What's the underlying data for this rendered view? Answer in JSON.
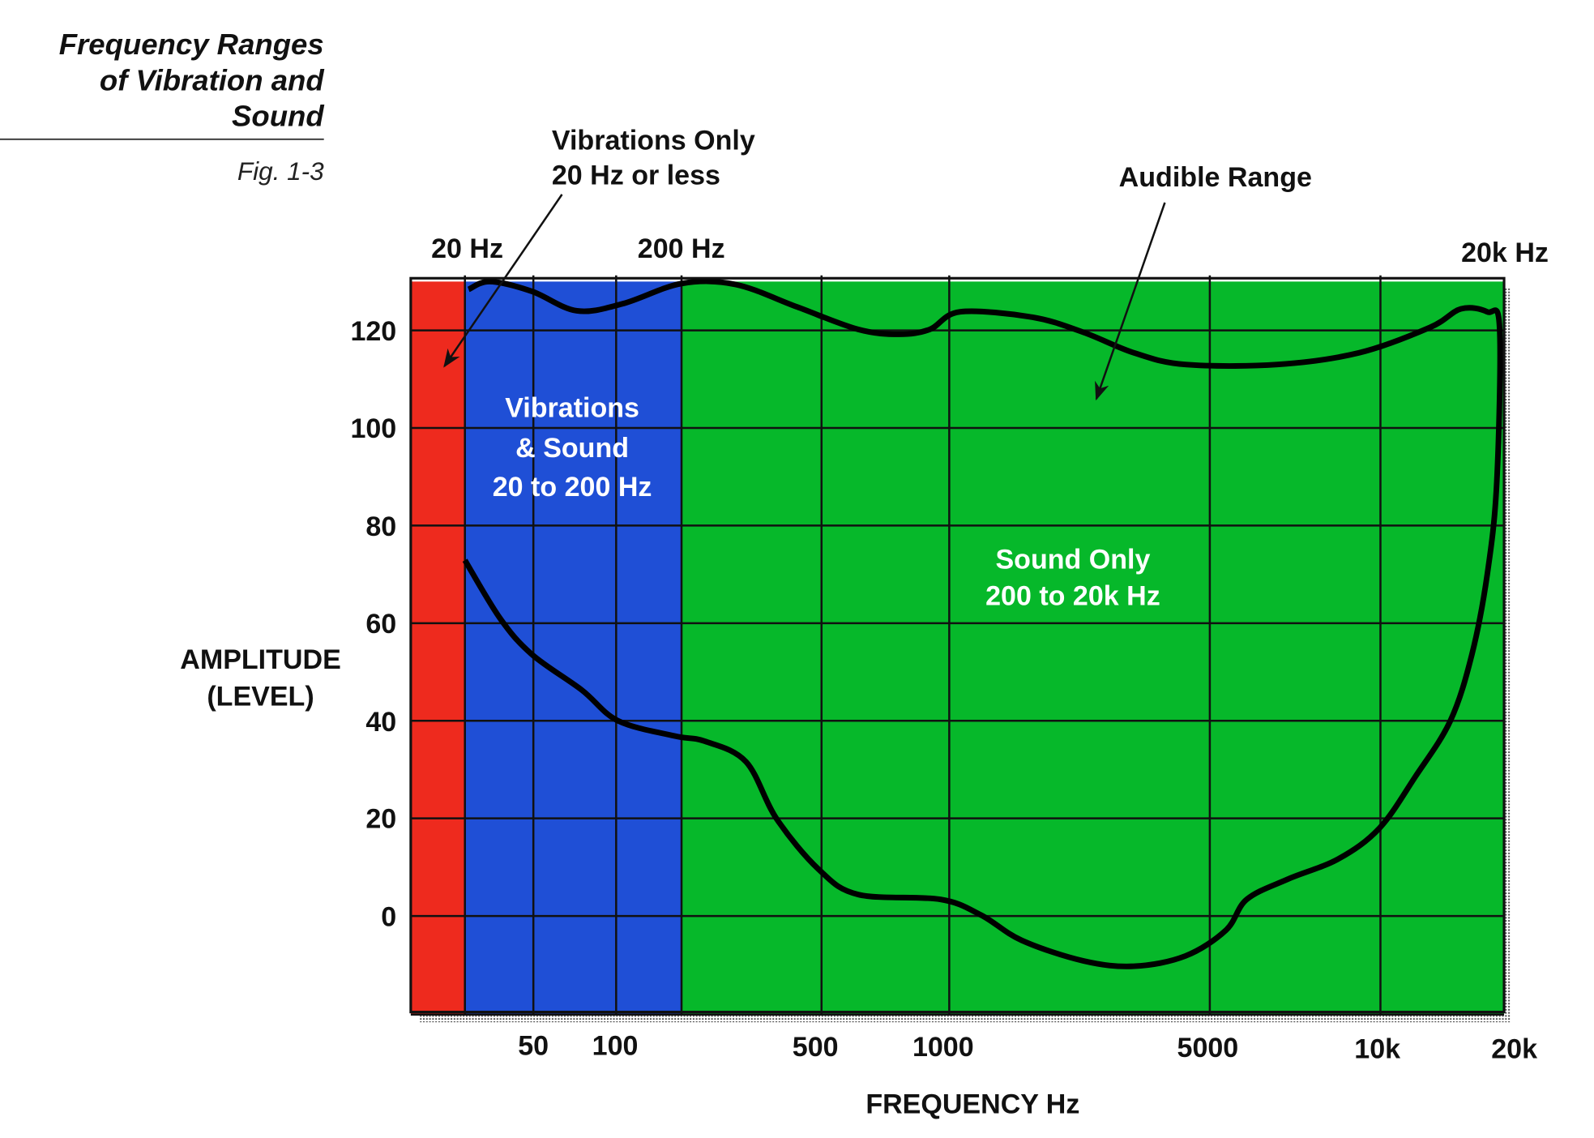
{
  "header": {
    "title_lines": [
      "Frequency Ranges",
      "of Vibration and",
      "Sound"
    ],
    "figure_label": "Fig. 1-3"
  },
  "colors": {
    "vibrations_only": "#ee2a1e",
    "vibrations_and_sound": "#1f4fd6",
    "sound_only": "#06b82a",
    "curve": "#000000"
  },
  "chart_data": {
    "type": "line",
    "title": "",
    "xlabel": "FREQUENCY Hz",
    "ylabel_lines": [
      "AMPLITUDE",
      "(LEVEL)"
    ],
    "x_scale": "log",
    "x_ticks": [
      "50",
      "100",
      "500",
      "1000",
      "5000",
      "10k",
      "20k"
    ],
    "x_tick_values": [
      50,
      100,
      500,
      1000,
      5000,
      10000,
      20000
    ],
    "top_markers": [
      "20 Hz",
      "200 Hz",
      "20k Hz"
    ],
    "y_ticks": [
      "120",
      "100",
      "80",
      "60",
      "40",
      "20",
      "0"
    ],
    "ylim": [
      -20,
      130
    ],
    "grid": true,
    "regions": [
      {
        "label_lines": [],
        "from_hz": 10,
        "to_hz": 20,
        "color": "#ee2a1e"
      },
      {
        "label_lines": [
          "Vibrations",
          "& Sound",
          "20 to 200 Hz"
        ],
        "from_hz": 20,
        "to_hz": 200,
        "color": "#1f4fd6"
      },
      {
        "label_lines": [
          "Sound Only",
          "200 to 20k Hz"
        ],
        "from_hz": 200,
        "to_hz": 20000,
        "color": "#06b82a"
      }
    ],
    "annotations": [
      {
        "label_lines": [
          "Vibrations Only",
          "20 Hz or less"
        ]
      },
      {
        "label_lines": [
          "Audible Range"
        ]
      }
    ],
    "series": [
      {
        "upper_boundary": [
          [
            21,
            128.4
          ],
          [
            28,
            130
          ],
          [
            49,
            128
          ],
          [
            72,
            124
          ],
          [
            108,
            125.5
          ],
          [
            200,
            129.6
          ],
          [
            285,
            129.4
          ],
          [
            426,
            124.8
          ],
          [
            610,
            120.2
          ],
          [
            762,
            119.2
          ],
          [
            900,
            120.2
          ],
          [
            1070,
            123.8
          ],
          [
            1670,
            122.7
          ],
          [
            2290,
            119.6
          ],
          [
            3130,
            115.4
          ],
          [
            4300,
            113
          ],
          [
            6580,
            113
          ],
          [
            9170,
            115.4
          ],
          [
            13200,
            120.6
          ],
          [
            15700,
            124.4
          ],
          [
            18200,
            123.8
          ],
          [
            19500,
            120.6
          ]
        ],
        "lower_boundary": [
          [
            19500,
            120.6
          ],
          [
            19200,
            89
          ],
          [
            18200,
            70
          ],
          [
            16700,
            53.6
          ],
          [
            14800,
            40
          ],
          [
            12150,
            28.5
          ],
          [
            9960,
            18
          ],
          [
            8430,
            11.7
          ],
          [
            6850,
            7.5
          ],
          [
            5810,
            3.4
          ],
          [
            5340,
            -2.9
          ],
          [
            4300,
            -8.2
          ],
          [
            3130,
            -10.3
          ],
          [
            2290,
            -9.2
          ],
          [
            1565,
            -5
          ],
          [
            1216,
            0.2
          ],
          [
            952,
            3.4
          ],
          [
            610,
            4.4
          ],
          [
            490,
            9.6
          ],
          [
            372,
            20
          ],
          [
            305,
            31.6
          ],
          [
            233,
            35.8
          ],
          [
            185,
            36.9
          ],
          [
            102,
            40
          ],
          [
            75,
            46.3
          ],
          [
            49,
            53.6
          ],
          [
            32,
            61
          ],
          [
            20,
            72.9
          ]
        ]
      }
    ]
  }
}
